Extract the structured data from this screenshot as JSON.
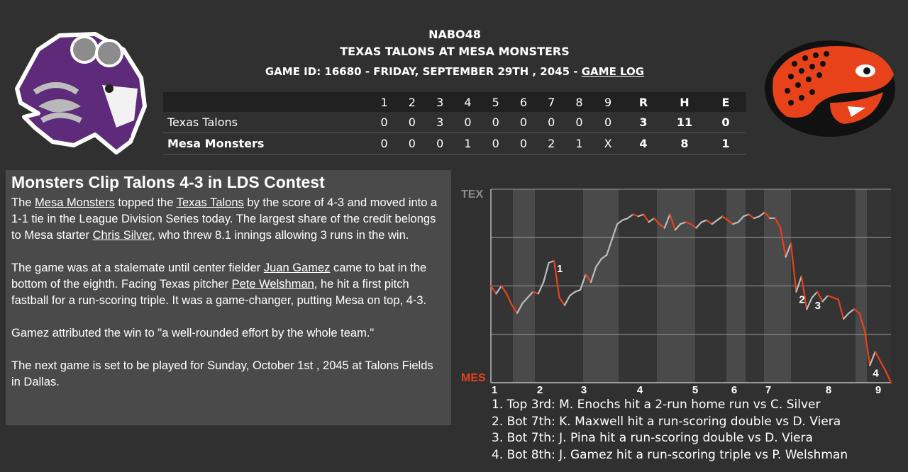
{
  "header": {
    "line1": "NABO48",
    "line2": "TEXAS TALONS AT MESA MONSTERS",
    "game_info": "GAME ID: 16680 - FRIDAY, SEPTEMBER 29TH , 2045 - ",
    "game_log": "GAME LOG"
  },
  "boxscore": {
    "innings": [
      "1",
      "2",
      "3",
      "4",
      "5",
      "6",
      "7",
      "8",
      "9"
    ],
    "totals": [
      "R",
      "H",
      "E"
    ],
    "away": {
      "team": "Texas Talons",
      "innings": [
        "0",
        "0",
        "3",
        "0",
        "0",
        "0",
        "0",
        "0",
        "0"
      ],
      "totals": [
        "3",
        "11",
        "0"
      ]
    },
    "home": {
      "team": "Mesa Monsters",
      "innings": [
        "0",
        "0",
        "0",
        "1",
        "0",
        "0",
        "2",
        "1",
        "X"
      ],
      "totals": [
        "4",
        "8",
        "1"
      ]
    }
  },
  "story": {
    "headline": "Monsters Clip Talons 4-3 in LDS Contest",
    "p1": {
      "a": "The ",
      "l1": "Mesa Monsters",
      "b": " topped the ",
      "l2": "Texas Talons",
      "c": " by the score of 4-3 and moved into a 1-1 tie in the League Division Series today. The largest share of the credit belongs to Mesa starter ",
      "l3": "Chris Silver",
      "d": ", who threw 8.1 innings allowing 3 runs in the win."
    },
    "p2": {
      "a": "The game was at a stalemate until center fielder ",
      "l1": "Juan Gamez",
      "b": " came to bat in the bottom of the eighth. Facing Texas pitcher ",
      "l2": "Pete Welshman",
      "c": ", he hit a first pitch fastball for a run-scoring triple. It was a game-changer, putting Mesa on top, 4-3."
    },
    "p3": "Gamez attributed the win to \"a well-rounded effort by the whole team.\"",
    "p4": "The next game is set to be played for Sunday, October 1st , 2045 at Talons Fields in Dallas."
  },
  "win_probability": {
    "top_label": "TEX",
    "bottom_label": "MES",
    "top_color": "#8a8a8a",
    "bottom_color": "#e8421b",
    "inning_labels": [
      "1",
      "2",
      "3",
      "4",
      "5",
      "6",
      "7",
      "8",
      "9"
    ],
    "markers": [
      "1",
      "2",
      "3",
      "4"
    ],
    "notes": [
      "1. Top 3rd: M. Enochs hit a 2-run home run vs C. Silver",
      "2. Bot 7th: K. Maxwell hit a run-scoring double vs D. Viera",
      "3. Bot 7th: J. Pina hit a run-scoring double vs D. Viera",
      "4. Bot 8th: J. Gamez hit a run-scoring triple vs P. Welshman"
    ]
  },
  "chart_data": {
    "type": "line",
    "title": "",
    "xlabel": "",
    "ylabel": "",
    "top_label": "TEX",
    "bottom_label": "MES",
    "ylim": [
      0,
      1
    ],
    "x_ticks": [
      "1",
      "2",
      "3",
      "4",
      "5",
      "6",
      "7",
      "8",
      "9"
    ],
    "values": [
      0.5,
      0.46,
      0.5,
      0.46,
      0.4,
      0.36,
      0.41,
      0.44,
      0.47,
      0.46,
      0.52,
      0.62,
      0.63,
      0.44,
      0.4,
      0.45,
      0.47,
      0.48,
      0.56,
      0.52,
      0.6,
      0.64,
      0.66,
      0.74,
      0.82,
      0.84,
      0.85,
      0.87,
      0.86,
      0.87,
      0.83,
      0.85,
      0.82,
      0.8,
      0.87,
      0.79,
      0.82,
      0.83,
      0.82,
      0.8,
      0.83,
      0.84,
      0.82,
      0.84,
      0.86,
      0.84,
      0.82,
      0.83,
      0.86,
      0.87,
      0.85,
      0.86,
      0.88,
      0.85,
      0.85,
      0.8,
      0.65,
      0.72,
      0.47,
      0.55,
      0.38,
      0.44,
      0.47,
      0.42,
      0.45,
      0.44,
      0.43,
      0.33,
      0.36,
      0.38,
      0.36,
      0.27,
      0.09,
      0.16,
      0.11,
      0.06,
      0.0
    ]
  }
}
